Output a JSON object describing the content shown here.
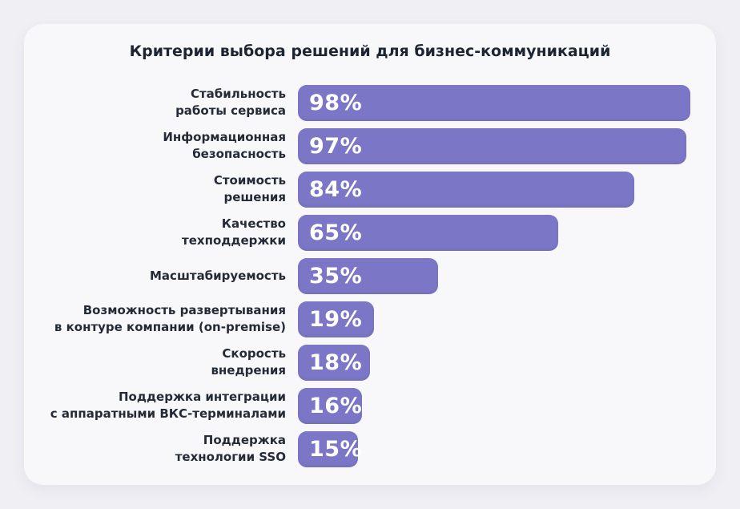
{
  "theme": {
    "page_bg": "#EFEFF4",
    "card_bg": "#F8F8FA",
    "bar_color": "#7B76C6",
    "title_color": "#1E2530",
    "label_color": "#242B36",
    "value_text_color": "#FFFFFF"
  },
  "chart_data": {
    "type": "bar",
    "orientation": "horizontal",
    "title": "Критерии выбора решений для бизнес-коммуникаций",
    "xlabel": "",
    "ylabel": "",
    "xlim": [
      0,
      100
    ],
    "unit": "%",
    "grid": false,
    "legend": null,
    "categories": [
      "Стабильность работы сервиса",
      "Информационная безопасность",
      "Стоимость решения",
      "Качество техподдержки",
      "Масштабируемость",
      "Возможность развертывания в контуре компании (on-premise)",
      "Скорость внедрения",
      "Поддержка интеграции с аппаратными ВКС-терминалами",
      "Поддержка технологии SSO"
    ],
    "category_line_breaks": [
      [
        "Стабильность",
        "работы сервиса"
      ],
      [
        "Информационная",
        "безопасность"
      ],
      [
        "Стоимость",
        "решения"
      ],
      [
        "Качество",
        "техподдержки"
      ],
      [
        "Масштабируемость"
      ],
      [
        "Возможность развертывания",
        "в контуре компании (on-premise)"
      ],
      [
        "Скорость",
        "внедрения"
      ],
      [
        "Поддержка интеграции",
        "с аппаратными ВКС-терминалами"
      ],
      [
        "Поддержка",
        "технологии SSO"
      ]
    ],
    "values": [
      98,
      97,
      84,
      65,
      35,
      19,
      18,
      16,
      15
    ],
    "value_labels": [
      "98%",
      "97%",
      "84%",
      "65%",
      "35%",
      "19%",
      "18%",
      "16%",
      "15%"
    ]
  }
}
